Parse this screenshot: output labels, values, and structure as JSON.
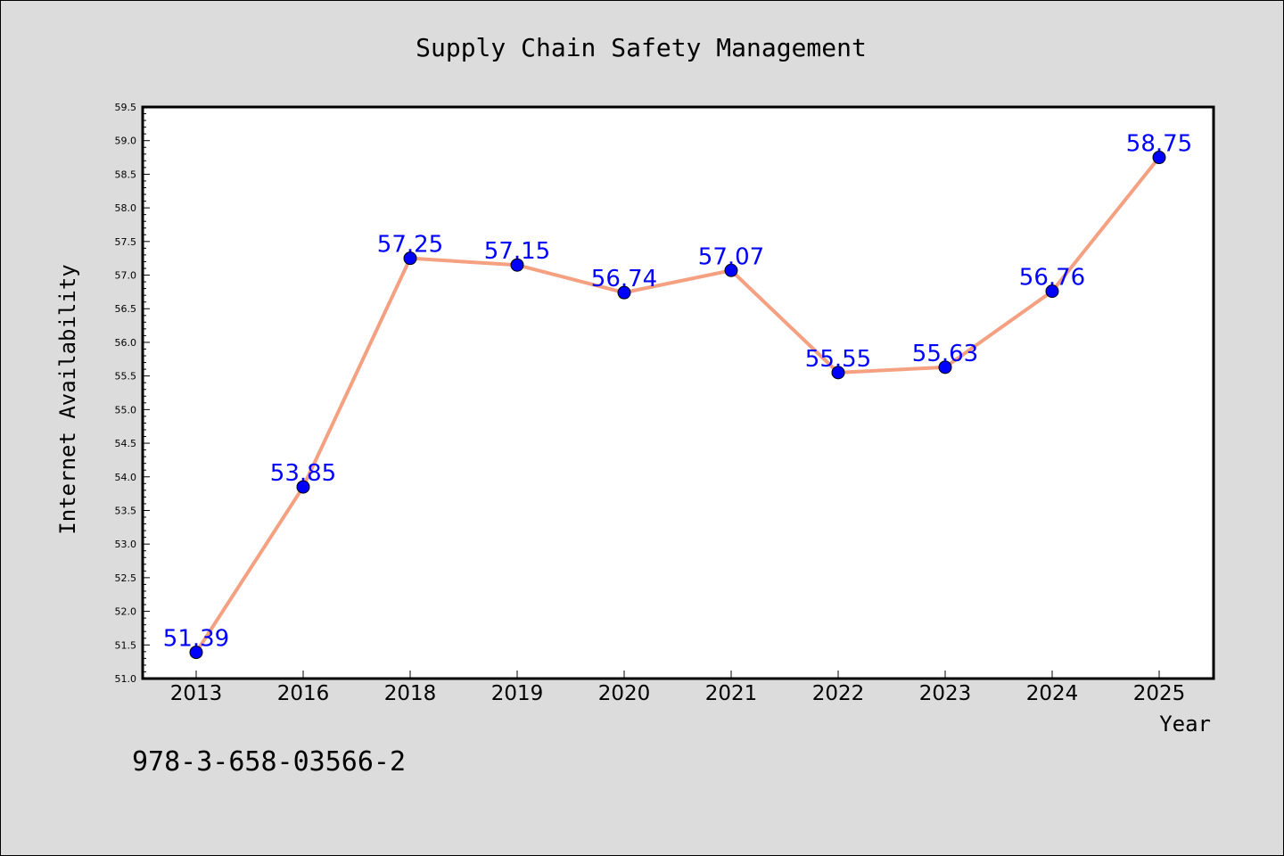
{
  "chart_data": {
    "type": "line",
    "title": "Supply Chain Safety Management",
    "xlabel": "Year",
    "ylabel": "Internet Availability",
    "categories": [
      "2013",
      "2016",
      "2018",
      "2019",
      "2020",
      "2021",
      "2022",
      "2023",
      "2024",
      "2025"
    ],
    "series": [
      {
        "values": [
          51.39,
          53.85,
          57.25,
          57.15,
          56.74,
          57.07,
          55.55,
          55.63,
          56.76,
          58.75
        ]
      }
    ],
    "data_labels": [
      "51.39",
      "53.85",
      "57.25",
      "57.15",
      "56.74",
      "57.07",
      "55.55",
      "55.63",
      "56.76",
      "58.75"
    ],
    "ylim": [
      51.0,
      59.5
    ],
    "yticks": [
      "51.0",
      "51.5",
      "52.0",
      "52.5",
      "53.0",
      "53.5",
      "54.0",
      "54.5",
      "55.0",
      "55.5",
      "56.0",
      "56.5",
      "57.0",
      "57.5",
      "58.0",
      "58.5",
      "59.0",
      "59.5"
    ],
    "grid": false,
    "line_color": "#f5a080",
    "marker_color": "#0000ff",
    "label_color": "#0000ff",
    "background": "#dcdcdc",
    "plot_background": "#ffffff"
  },
  "annotation": "978-3-658-03566-2"
}
